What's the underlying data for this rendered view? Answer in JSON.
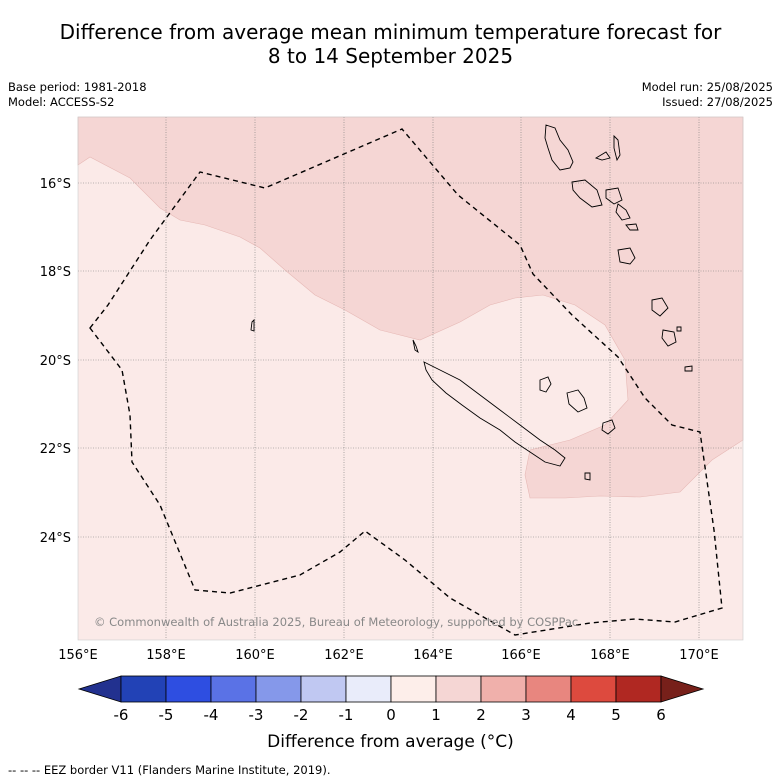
{
  "title": {
    "line1": "Difference from average mean minimum temperature forecast for",
    "line2": "8 to 14 September 2025"
  },
  "meta": {
    "base_period": "Base period: 1981-2018",
    "model": "Model: ACCESS-S2",
    "model_run": "Model run: 25/08/2025",
    "issued": "Issued: 27/08/2025"
  },
  "map": {
    "lat_labels": [
      "16°S",
      "18°S",
      "20°S",
      "22°S",
      "24°S"
    ],
    "lon_labels": [
      "156°E",
      "158°E",
      "160°E",
      "162°E",
      "164°E",
      "166°E",
      "168°E",
      "170°E"
    ],
    "copyright": "© Commonwealth of Australia 2025, Bureau of Meteorology, supported by COSPPac",
    "region_colors": {
      "0_to_1": "#fbeae8",
      "1_to_2": "#f5d6d4"
    }
  },
  "colorbar": {
    "ticks": [
      "-6",
      "-5",
      "-4",
      "-3",
      "-2",
      "-1",
      "0",
      "1",
      "2",
      "3",
      "4",
      "5",
      "6"
    ],
    "colors": [
      "#22318f",
      "#2242b6",
      "#2e4ee1",
      "#5a72e6",
      "#8598ea",
      "#c0c8f2",
      "#e9ecfa",
      "#fdeeea",
      "#f5d6d4",
      "#f0b0ab",
      "#e8867f",
      "#dd4a3e",
      "#b02822",
      "#77201a"
    ],
    "label": "Difference from average (°C)"
  },
  "footer": "--  --  -- EEZ border V11 (Flanders Marine Institute, 2019)."
}
